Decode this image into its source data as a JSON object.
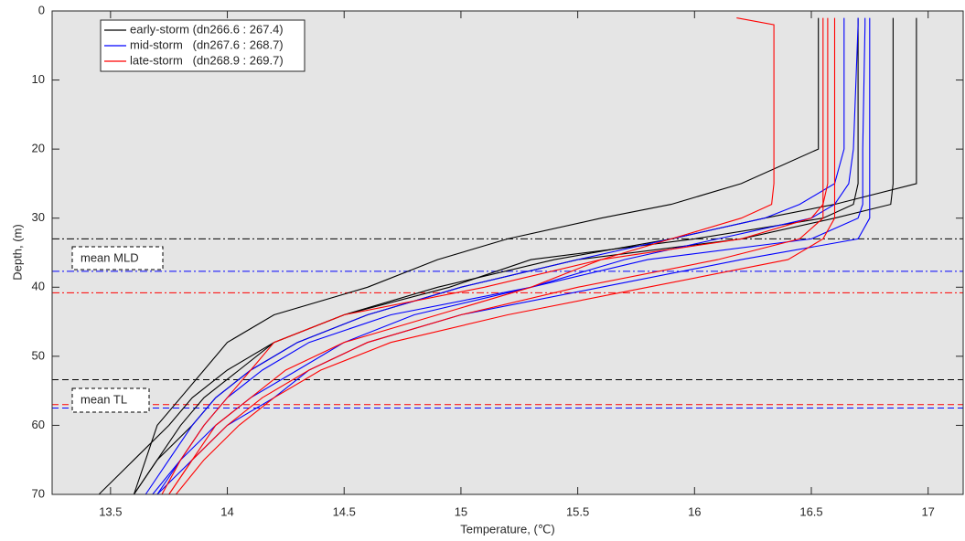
{
  "chart_data": {
    "type": "profile-line",
    "xlabel": "Temperature, (℃)",
    "ylabel": "Depth, (m)",
    "xlim": [
      13.25,
      17.15
    ],
    "ylim": [
      0,
      70
    ],
    "y_reversed": true,
    "xticks": [
      13.5,
      14,
      14.5,
      15,
      15.5,
      16,
      16.5,
      17
    ],
    "yticks": [
      0,
      10,
      20,
      30,
      40,
      50,
      60,
      70
    ],
    "depth": [
      1,
      2,
      20,
      25,
      28,
      30,
      33,
      36,
      40,
      44,
      48,
      52,
      56,
      60,
      65,
      70
    ],
    "series": [
      {
        "name": "early-storm (dn266.6 : 267.4)",
        "color": "#000000",
        "profiles": [
          [
            16.95,
            16.95,
            16.95,
            16.95,
            16.6,
            16.3,
            15.9,
            15.4,
            14.9,
            14.5,
            14.2,
            14.0,
            13.85,
            13.75,
            13.6,
            13.45
          ],
          [
            16.85,
            16.85,
            16.85,
            16.85,
            16.84,
            16.6,
            16.2,
            15.5,
            15.0,
            14.6,
            14.3,
            14.1,
            13.95,
            13.85,
            13.7,
            13.6
          ],
          [
            16.7,
            16.7,
            16.7,
            16.7,
            16.68,
            16.55,
            16.0,
            15.3,
            14.95,
            14.5,
            14.2,
            14.05,
            13.9,
            13.8,
            13.7,
            13.6
          ],
          [
            16.53,
            16.53,
            16.53,
            16.2,
            15.9,
            15.6,
            15.2,
            14.9,
            14.6,
            14.2,
            14.0,
            13.9,
            13.8,
            13.7,
            13.65,
            13.6
          ]
        ]
      },
      {
        "name": "mid-storm   (dn267.6 : 268.7)",
        "color": "#0000ff",
        "profiles": [
          [
            16.75,
            16.75,
            16.75,
            16.75,
            16.75,
            16.75,
            16.7,
            16.2,
            15.6,
            15.0,
            14.6,
            14.35,
            14.2,
            14.0,
            13.85,
            13.7
          ],
          [
            16.73,
            16.73,
            16.72,
            16.72,
            16.72,
            16.7,
            16.5,
            15.8,
            15.3,
            14.8,
            14.5,
            14.3,
            14.1,
            13.95,
            13.8,
            13.68
          ],
          [
            16.64,
            16.64,
            16.64,
            16.6,
            16.45,
            16.3,
            15.9,
            15.5,
            15.0,
            14.6,
            14.3,
            14.1,
            13.95,
            13.85,
            13.75,
            13.65
          ],
          [
            16.7,
            16.7,
            16.68,
            16.66,
            16.6,
            16.5,
            16.1,
            15.7,
            15.3,
            14.7,
            14.35,
            14.15,
            14.0,
            13.9,
            13.8,
            13.7
          ]
        ]
      },
      {
        "name": "late-storm   (dn268.9 : 269.7)",
        "color": "#ff0000",
        "profiles": [
          [
            16.18,
            16.34,
            16.34,
            16.34,
            16.33,
            16.2,
            15.9,
            15.6,
            15.3,
            14.9,
            14.5,
            14.25,
            14.1,
            13.95,
            13.85,
            13.75
          ],
          [
            16.55,
            16.55,
            16.55,
            16.55,
            16.55,
            16.55,
            16.45,
            16.1,
            15.5,
            15.0,
            14.6,
            14.35,
            14.15,
            14.0,
            13.85,
            13.75
          ],
          [
            16.6,
            16.6,
            16.6,
            16.6,
            16.6,
            16.6,
            16.55,
            16.4,
            15.8,
            15.2,
            14.7,
            14.4,
            14.2,
            14.05,
            13.9,
            13.78
          ],
          [
            16.57,
            16.57,
            16.57,
            16.57,
            16.55,
            16.5,
            16.2,
            15.6,
            15.1,
            14.5,
            14.2,
            14.1,
            14.0,
            13.9,
            13.8,
            13.72
          ]
        ]
      }
    ],
    "ref_lines": [
      {
        "value": 33,
        "color": "#000000",
        "style": "dashdot"
      },
      {
        "value": 37.7,
        "color": "#0000ff",
        "style": "dashdot"
      },
      {
        "value": 40.8,
        "color": "#ff0000",
        "style": "dashdot"
      },
      {
        "value": 53.4,
        "color": "#000000",
        "style": "dashed"
      },
      {
        "value": 57,
        "color": "#ff0000",
        "style": "dashed"
      },
      {
        "value": 57.5,
        "color": "#0000ff",
        "style": "dashed"
      }
    ],
    "annotations": [
      "mean MLD",
      "mean TL"
    ]
  }
}
